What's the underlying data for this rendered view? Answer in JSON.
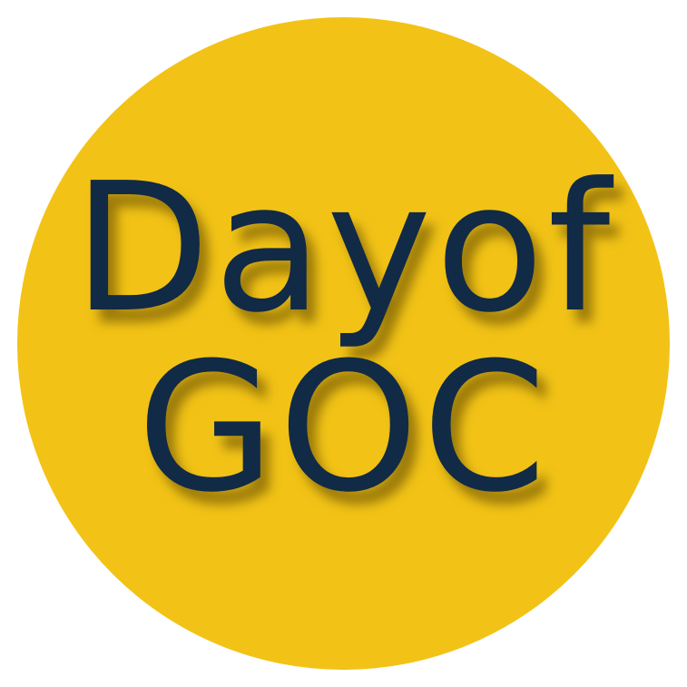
{
  "logo": {
    "line1": "Dayof",
    "line2": "GOC"
  },
  "colors": {
    "circle": "#F2C316",
    "text": "#112A46",
    "background": "#FFFFFF"
  }
}
